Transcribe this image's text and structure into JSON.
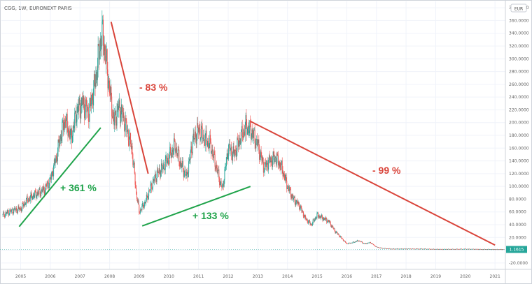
{
  "header": {
    "title": "CGG, 1W, EURONEXT PARIS"
  },
  "currency_badge": "EUR",
  "last_price_label": "1.1615",
  "colors": {
    "up": "#26a69a",
    "down": "#ef5350",
    "green_trend": "#1fa34a",
    "red_trend": "#d9443a",
    "price_line": "#26a69a",
    "grid": "#f0f3fa"
  },
  "chart_data": {
    "type": "line",
    "title": "CGG, 1W, EURONEXT PARIS",
    "x_ticks": [
      "2005",
      "2006",
      "2007",
      "2008",
      "2009",
      "2010",
      "2011",
      "2012",
      "2013",
      "2014",
      "2015",
      "2016",
      "2017",
      "2018",
      "2019",
      "2020",
      "2021"
    ],
    "y_ticks": [
      "-20.0000",
      "0.0000",
      "20.0000",
      "40.0000",
      "60.0000",
      "80.0000",
      "100.0000",
      "120.0000",
      "140.0000",
      "160.0000",
      "180.0000",
      "200.0000",
      "220.0000",
      "240.0000",
      "260.0000",
      "280.0000",
      "300.0000",
      "320.0000",
      "340.0000",
      "360.0000",
      "380.0000"
    ],
    "ylim": [
      -30,
      390
    ],
    "xlim": [
      2004.35,
      2021.35
    ],
    "grid": true,
    "series": [
      {
        "x": [
          2004.4,
          2004.6,
          2004.8,
          2005.0,
          2005.2,
          2005.4,
          2005.6,
          2005.8,
          2006.0,
          2006.2,
          2006.35,
          2006.5,
          2006.7,
          2006.9,
          2007.1,
          2007.3,
          2007.5,
          2007.7,
          2007.75,
          2007.85,
          2008.0,
          2008.15,
          2008.3,
          2008.45,
          2008.6,
          2008.75,
          2008.9,
          2009.0,
          2009.2,
          2009.4,
          2009.6,
          2009.8,
          2010.0,
          2010.2,
          2010.4,
          2010.6,
          2010.8,
          2011.0,
          2011.2,
          2011.4,
          2011.6,
          2011.8,
          2012.0,
          2012.2,
          2012.4,
          2012.6,
          2012.8,
          2013.0,
          2013.2,
          2013.4,
          2013.6,
          2013.8,
          2014.0,
          2014.2,
          2014.4,
          2014.6,
          2014.8,
          2015.0,
          2015.2,
          2015.4,
          2015.6,
          2015.8,
          2016.0,
          2016.2,
          2016.4,
          2016.6,
          2016.8,
          2017.0,
          2017.2,
          2017.5,
          2018.0,
          2018.5,
          2019.0,
          2019.5,
          2020.0,
          2020.5,
          2021.0,
          2021.3
        ],
        "values": [
          55,
          60,
          63,
          65,
          78,
          85,
          90,
          95,
          110,
          145,
          180,
          205,
          175,
          220,
          230,
          215,
          260,
          330,
          340,
          310,
          250,
          200,
          225,
          210,
          185,
          160,
          90,
          60,
          75,
          100,
          120,
          130,
          145,
          165,
          135,
          115,
          170,
          190,
          175,
          165,
          130,
          95,
          160,
          150,
          175,
          195,
          185,
          165,
          130,
          140,
          145,
          130,
          100,
          80,
          70,
          50,
          40,
          55,
          50,
          45,
          30,
          20,
          10,
          12,
          15,
          10,
          12,
          5,
          3,
          2,
          2,
          2,
          1.5,
          1.5,
          1.8,
          1.4,
          1.2,
          1.1615
        ]
      }
    ],
    "annotations": [
      "+ 361 %",
      "- 83 %",
      "+ 133 %",
      "- 99 %"
    ]
  }
}
